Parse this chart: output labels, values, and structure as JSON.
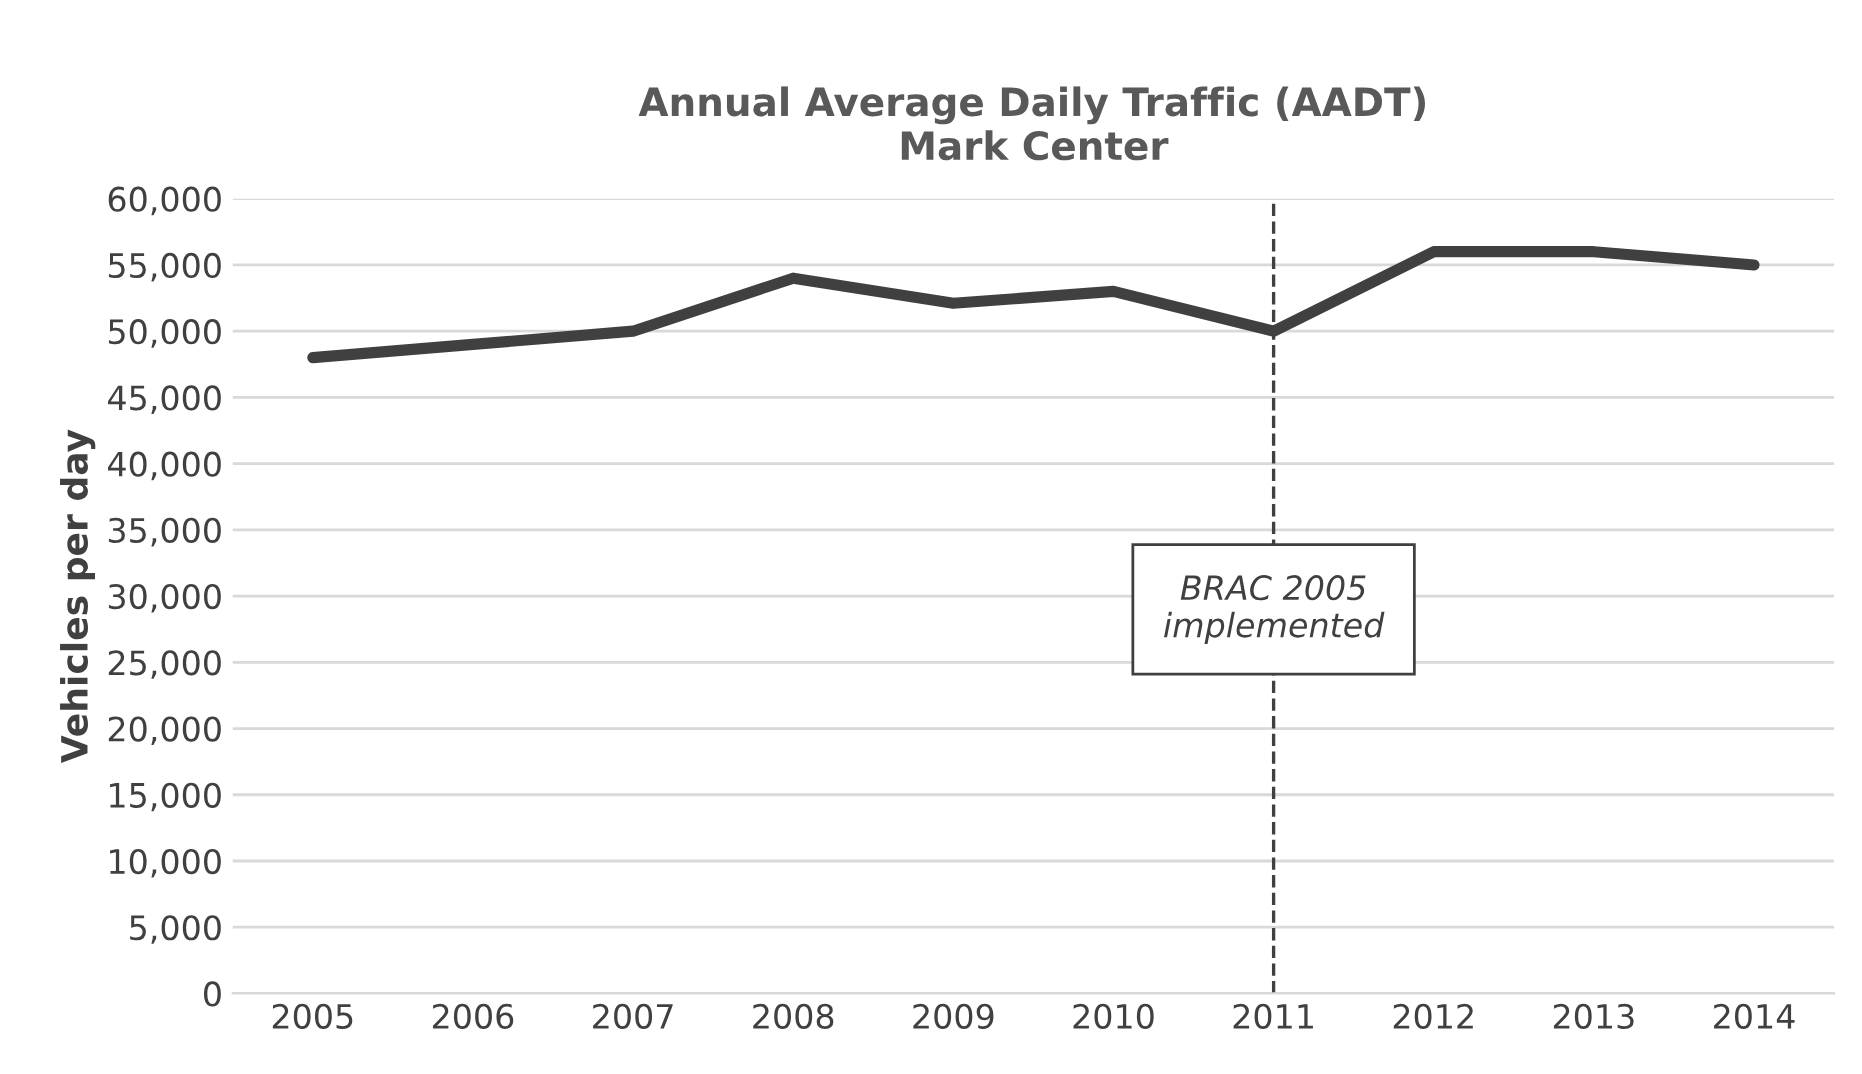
{
  "chart_data": {
    "type": "line",
    "title": "Annual Average Daily Traffic (AADT)\nMark Center",
    "ylabel": "Vehicles per day",
    "categories": [
      "2005",
      "2006",
      "2007",
      "2008",
      "2009",
      "2010",
      "2011",
      "2012",
      "2013",
      "2014"
    ],
    "series": [
      {
        "color": "#404040",
        "values": [
          48000,
          49000,
          50000,
          54000,
          52100,
          53000,
          50000,
          56000,
          56000,
          55000
        ]
      }
    ],
    "ylim": [
      0,
      60000
    ],
    "yticks": [
      {
        "value": 0,
        "label": "0"
      },
      {
        "value": 5000,
        "label": "5,000"
      },
      {
        "value": 10000,
        "label": "10,000"
      },
      {
        "value": 15000,
        "label": "15,000"
      },
      {
        "value": 20000,
        "label": "20,000"
      },
      {
        "value": 25000,
        "label": "25,000"
      },
      {
        "value": 30000,
        "label": "30,000"
      },
      {
        "value": 35000,
        "label": "35,000"
      },
      {
        "value": 40000,
        "label": "40,000"
      },
      {
        "value": 45000,
        "label": "45,000"
      },
      {
        "value": 50000,
        "label": "50,000"
      },
      {
        "value": 55000,
        "label": "55,000"
      },
      {
        "value": 60000,
        "label": "60,000"
      }
    ],
    "ref_lines": [
      {
        "axis": "x",
        "value": "2011",
        "label": "BRAC 2005\nimplemented",
        "color": "#404040",
        "line_style": "dashed"
      }
    ],
    "grid": "y",
    "legend": false,
    "marker": "none",
    "line_style": "solid"
  }
}
